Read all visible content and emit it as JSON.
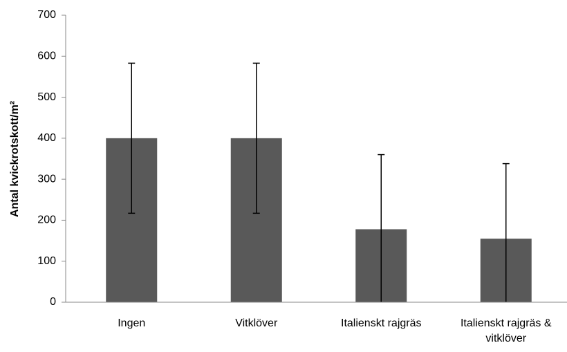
{
  "chart_data": {
    "type": "bar",
    "ylabel": "Antal kvickrotskott/m²",
    "categories": [
      "Ingen",
      "Vitklöver",
      "Italienskt rajgräs",
      "Italienskt rajgräs & vitklöver"
    ],
    "values": [
      400,
      400,
      178,
      155
    ],
    "errors": [
      183,
      183,
      182,
      183
    ],
    "color": "#595959",
    "ylim": [
      0,
      700
    ],
    "yticks": [
      0,
      100,
      200,
      300,
      400,
      500,
      600,
      700
    ],
    "grid": false
  }
}
